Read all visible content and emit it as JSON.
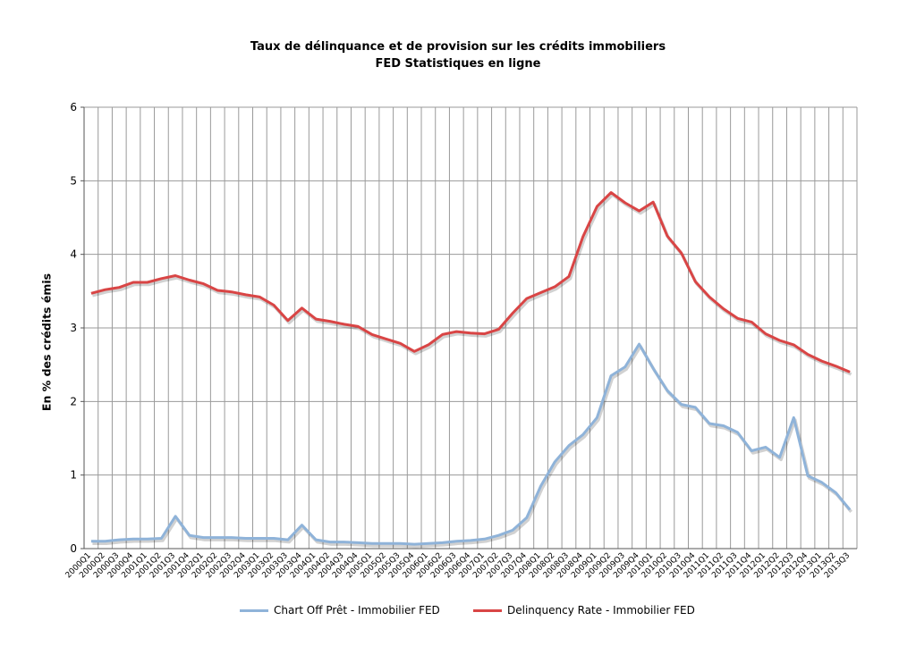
{
  "chart_data": {
    "type": "line",
    "title": "Taux de délinquance et de provision sur les crédits immobiliers",
    "subtitle": "FED Statistiques en ligne",
    "ylabel": "En % des crédits émis",
    "xlabel": "",
    "ylim": [
      0,
      6
    ],
    "yticks": [
      0,
      1,
      2,
      3,
      4,
      5,
      6
    ],
    "grid": true,
    "legend_position": "bottom",
    "categories": [
      "2000Q1",
      "2000Q2",
      "2000Q3",
      "2000Q4",
      "2001Q1",
      "2001Q2",
      "2001Q3",
      "2001Q4",
      "2002Q1",
      "2002Q2",
      "2002Q3",
      "2002Q4",
      "2003Q1",
      "2003Q2",
      "2003Q3",
      "2003Q4",
      "2004Q1",
      "2004Q2",
      "2004Q3",
      "2004Q4",
      "2005Q1",
      "2005Q2",
      "2005Q3",
      "2005Q4",
      "2006Q1",
      "2006Q2",
      "2006Q3",
      "2006Q4",
      "2007Q1",
      "2007Q2",
      "2007Q3",
      "2007Q4",
      "2008Q1",
      "2008Q2",
      "2008Q3",
      "2008Q4",
      "2009Q1",
      "2009Q2",
      "2009Q3",
      "2009Q4",
      "2010Q1",
      "2010Q2",
      "2010Q3",
      "2010Q4",
      "2011Q1",
      "2011Q2",
      "2011Q3",
      "2011Q4",
      "2012Q1",
      "2012Q2",
      "2012Q3",
      "2012Q4",
      "2013Q1",
      "2013Q2",
      "2013Q3"
    ],
    "series": [
      {
        "name": "Chart Off Prêt - Immobilier FED",
        "color": "#8FB3D9",
        "values": [
          0.1,
          0.1,
          0.12,
          0.13,
          0.13,
          0.14,
          0.44,
          0.18,
          0.15,
          0.15,
          0.15,
          0.14,
          0.14,
          0.14,
          0.12,
          0.32,
          0.12,
          0.09,
          0.09,
          0.08,
          0.07,
          0.07,
          0.07,
          0.06,
          0.07,
          0.08,
          0.1,
          0.11,
          0.13,
          0.18,
          0.25,
          0.42,
          0.85,
          1.18,
          1.4,
          1.55,
          1.78,
          2.35,
          2.47,
          2.78,
          2.45,
          2.15,
          1.96,
          1.92,
          1.7,
          1.67,
          1.58,
          1.33,
          1.38,
          1.24,
          1.78,
          0.99,
          0.9,
          0.76,
          0.53
        ]
      },
      {
        "name": "Delinquency Rate - Immobilier FED",
        "color": "#D94545",
        "values": [
          3.47,
          3.52,
          3.55,
          3.62,
          3.62,
          3.67,
          3.71,
          3.65,
          3.6,
          3.51,
          3.49,
          3.45,
          3.42,
          3.31,
          3.1,
          3.27,
          3.12,
          3.09,
          3.05,
          3.02,
          2.91,
          2.85,
          2.79,
          2.68,
          2.77,
          2.91,
          2.95,
          2.93,
          2.92,
          2.98,
          3.2,
          3.4,
          3.48,
          3.56,
          3.7,
          4.24,
          4.65,
          4.84,
          4.7,
          4.59,
          4.71,
          4.25,
          4.02,
          3.63,
          3.42,
          3.26,
          3.13,
          3.08,
          2.92,
          2.83,
          2.77,
          2.64,
          2.55,
          2.48,
          2.4
        ]
      }
    ]
  }
}
